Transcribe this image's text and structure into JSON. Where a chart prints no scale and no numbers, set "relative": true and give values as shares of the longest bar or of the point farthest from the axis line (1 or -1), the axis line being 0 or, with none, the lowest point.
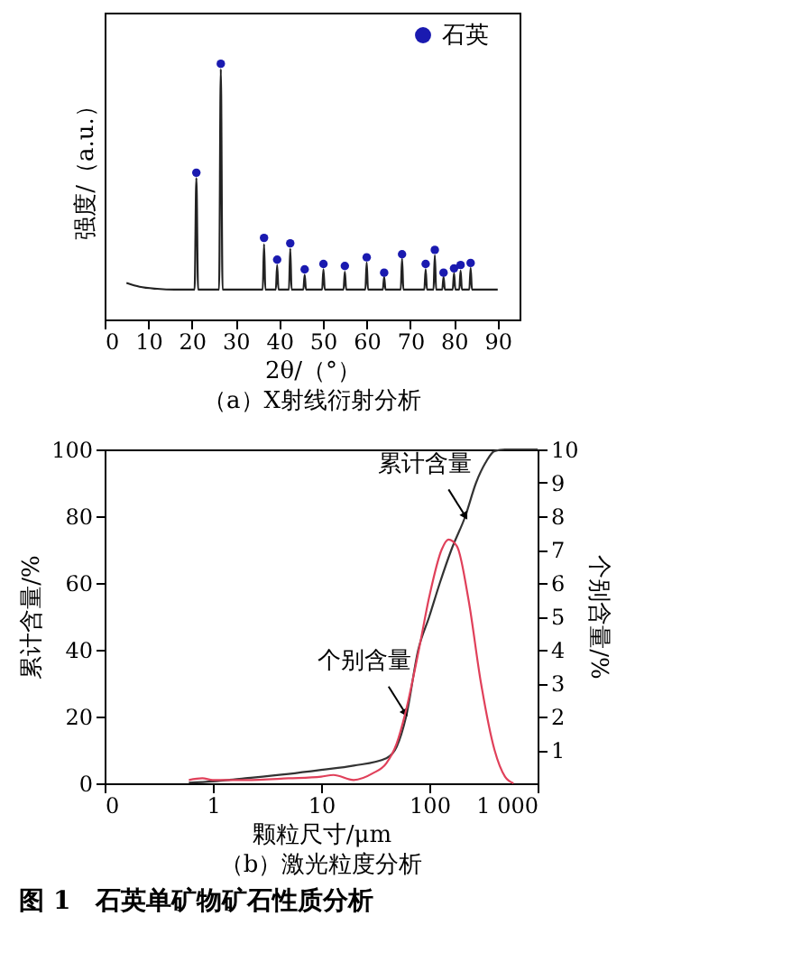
{
  "chart_data": [
    {
      "type": "line",
      "title": "（a）X射线衍射分析",
      "xlabel": "2θ/（°）",
      "ylabel": "强度/（a.u.）",
      "relative": true,
      "xlim": [
        0,
        95
      ],
      "xticks": [
        0,
        10,
        20,
        30,
        40,
        50,
        60,
        70,
        80,
        90
      ],
      "grid": false,
      "legend": "top right",
      "tick_labels": "x",
      "series": [
        {
          "color": "#222222",
          "x": [
            5,
            8,
            12,
            16,
            20.6,
            21,
            21.4,
            26.2,
            26.6,
            27,
            36.2,
            36.5,
            36.8,
            39.2,
            39.5,
            39.8,
            40.3,
            42.2,
            42.5,
            42.8,
            45.5,
            45.8,
            46.1,
            49.8,
            50.1,
            50.4,
            54.7,
            55,
            55.3,
            59.7,
            60,
            60.3,
            63.7,
            64,
            64.3,
            67.8,
            68.1,
            68.4,
            73.2,
            73.5,
            73.8,
            75.3,
            75.6,
            75.9,
            77.3,
            77.6,
            77.9,
            79.7,
            80,
            80.3,
            81.2,
            81.5,
            81.8,
            83.5,
            83.8,
            84.1,
            90
          ],
          "values": [
            0.143,
            0.128,
            0.12,
            0.117,
            0.117,
            0.553,
            0.117,
            0.117,
            0.979,
            0.117,
            0.117,
            0.294,
            0.117,
            0.117,
            0.213,
            0.117,
            0.117,
            0.117,
            0.277,
            0.117,
            0.117,
            0.174,
            0.117,
            0.117,
            0.196,
            0.117,
            0.117,
            0.187,
            0.117,
            0.117,
            0.223,
            0.117,
            0.117,
            0.166,
            0.117,
            0.117,
            0.238,
            0.117,
            0.117,
            0.196,
            0.117,
            0.117,
            0.251,
            0.117,
            0.117,
            0.166,
            0.117,
            0.117,
            0.181,
            0.117,
            0.117,
            0.191,
            0.117,
            0.117,
            0.202,
            0.117,
            0.117
          ]
        },
        {
          "type": "scatter",
          "name": "石英",
          "color": "#1a1ab0",
          "marker": "circle",
          "x": [
            21,
            26.6,
            36.5,
            39.5,
            42.5,
            45.8,
            50.1,
            55,
            60,
            64,
            68.1,
            73.5,
            75.6,
            77.6,
            80,
            81.5,
            83.8
          ],
          "values": [
            0.574,
            1,
            0.319,
            0.234,
            0.298,
            0.196,
            0.217,
            0.209,
            0.243,
            0.183,
            0.255,
            0.217,
            0.272,
            0.183,
            0.2,
            0.213,
            0.221
          ]
        }
      ]
    },
    {
      "type": "line",
      "title": "（b）激光粒度分析",
      "xlabel": "颗粒尺寸/μm",
      "ylabel": "累计含量/%",
      "y2label": "个别含量/%",
      "log": "x",
      "xlim": [
        0.1,
        1000
      ],
      "xticks": [
        {
          "value": 0.1,
          "label": "0"
        },
        1,
        10,
        100,
        {
          "value": 1000,
          "label": "1 000"
        }
      ],
      "ylim": [
        0,
        100
      ],
      "yticks": [
        0,
        20,
        40,
        60,
        80,
        100
      ],
      "y2lim": [
        0,
        10
      ],
      "y2ticks": [
        1,
        2,
        3,
        4,
        5,
        6,
        7,
        8,
        9,
        10
      ],
      "grid": false,
      "legend": false,
      "series": [
        {
          "color": "#333333",
          "x": [
            0.6,
            1,
            2,
            5,
            10,
            20,
            40,
            50,
            61,
            79,
            100,
            125,
            160,
            215,
            270,
            330,
            400,
            500,
            1000
          ],
          "values": [
            0.2,
            0.6,
            1.5,
            2.8,
            4,
            5.3,
            7.5,
            11,
            20,
            40,
            50,
            60,
            70,
            80,
            90,
            96,
            99.5,
            100,
            100
          ]
        },
        {
          "color": "#e0405a",
          "axis": "y2",
          "x": [
            0.6,
            0.8,
            1,
            2,
            5,
            10,
            13,
            20,
            30,
            40,
            50,
            60,
            80,
            100,
            130,
            150,
            180,
            230,
            300,
            400,
            500,
            600
          ],
          "values": [
            0.1,
            0.15,
            0.1,
            0.1,
            0.15,
            0.2,
            0.25,
            0.1,
            0.3,
            0.6,
            1.2,
            2.1,
            4,
            5.6,
            7,
            7.3,
            7.1,
            5.5,
            3,
            1,
            0.2,
            0
          ]
        }
      ],
      "annotations": [
        {
          "text": "累计含量",
          "x": 215,
          "y": 80
        },
        {
          "text": "个别含量",
          "x": 60,
          "y": 21
        },
        "图 1　石英单矿物矿石性质分析"
      ]
    }
  ]
}
